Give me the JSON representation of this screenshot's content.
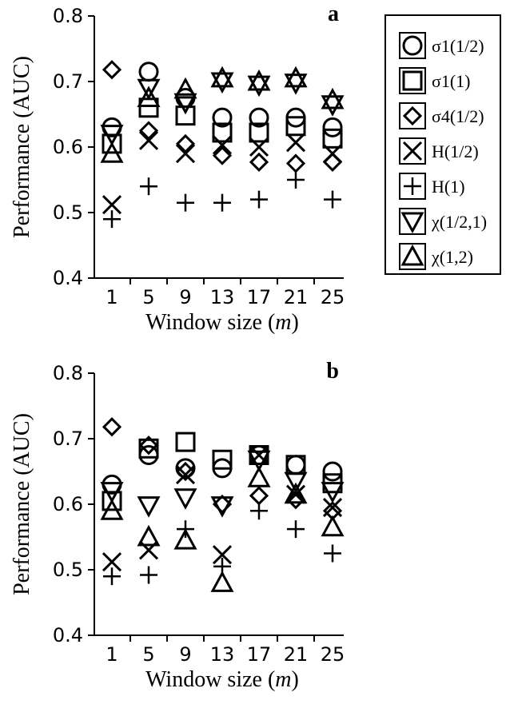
{
  "chart_data": [
    {
      "type": "scatter",
      "panel_label": "a",
      "xlabel": "Window size",
      "xlabel_var": "m",
      "ylabel": "Performance (AUC)",
      "ylim": [
        0.4,
        0.8
      ],
      "yticks": [
        "0.4",
        "0.5",
        "0.6",
        "0.7",
        "0.8"
      ],
      "x": [
        1,
        5,
        9,
        13,
        17,
        21,
        25
      ],
      "xticks": [
        "1",
        "5",
        "9",
        "13",
        "17",
        "21",
        "25"
      ],
      "series": [
        {
          "name": "σ1(1/2)",
          "marker": "circle",
          "values": [
            0.63,
            0.715,
            0.675,
            0.645,
            0.645,
            0.645,
            0.63
          ]
        },
        {
          "name": "σ1(1)",
          "marker": "square",
          "values": [
            0.605,
            0.66,
            0.648,
            0.622,
            0.622,
            0.632,
            0.613
          ]
        },
        {
          "name": "σ4(1/2)",
          "marker": "diamond",
          "values": [
            0.718,
            0.625,
            0.605,
            0.587,
            0.577,
            0.575,
            0.577
          ]
        },
        {
          "name": "H(1/2)",
          "marker": "x",
          "values": [
            0.512,
            0.61,
            0.59,
            0.603,
            0.6,
            0.607,
            0.59
          ]
        },
        {
          "name": "H(1)",
          "marker": "plus",
          "values": [
            0.49,
            0.54,
            0.515,
            0.515,
            0.52,
            0.55,
            0.52
          ]
        },
        {
          "name": "χ(1/2,1)",
          "marker": "triangle-down",
          "values": [
            0.62,
            0.69,
            0.668,
            0.7,
            0.695,
            0.698,
            0.665
          ]
        },
        {
          "name": "χ(1,2)",
          "marker": "triangle-up",
          "values": [
            0.59,
            0.675,
            0.688,
            0.705,
            0.7,
            0.705,
            0.672
          ]
        }
      ],
      "legend": "outside-right"
    },
    {
      "type": "scatter",
      "panel_label": "b",
      "xlabel": "Window size",
      "xlabel_var": "m",
      "ylabel": "Performance (AUC)",
      "ylim": [
        0.4,
        0.8
      ],
      "yticks": [
        "0.4",
        "0.5",
        "0.6",
        "0.7",
        "0.8"
      ],
      "x": [
        1,
        5,
        9,
        13,
        17,
        21,
        25
      ],
      "xticks": [
        "1",
        "5",
        "9",
        "13",
        "17",
        "21",
        "25"
      ],
      "series": [
        {
          "name": "σ1(1/2)",
          "marker": "circle",
          "values": [
            0.63,
            0.675,
            0.655,
            0.655,
            0.675,
            0.66,
            0.65
          ]
        },
        {
          "name": "σ1(1)",
          "marker": "square",
          "values": [
            0.605,
            0.685,
            0.695,
            0.668,
            0.675,
            0.66,
            0.632
          ]
        },
        {
          "name": "σ4(1/2)",
          "marker": "diamond",
          "values": [
            0.718,
            0.69,
            0.65,
            0.6,
            0.613,
            0.607,
            0.59
          ]
        },
        {
          "name": "H(1/2)",
          "marker": "x",
          "values": [
            0.512,
            0.53,
            0.645,
            0.523,
            0.675,
            0.615,
            0.595
          ]
        },
        {
          "name": "H(1)",
          "marker": "plus",
          "values": [
            0.49,
            0.492,
            0.562,
            0.505,
            0.59,
            0.562,
            0.525
          ]
        },
        {
          "name": "χ(1/2,1)",
          "marker": "triangle-down",
          "values": [
            0.62,
            0.598,
            0.61,
            0.598,
            0.668,
            0.635,
            0.62
          ]
        },
        {
          "name": "χ(1,2)",
          "marker": "triangle-up",
          "values": [
            0.59,
            0.55,
            0.545,
            0.48,
            0.64,
            0.615,
            0.565
          ]
        }
      ]
    }
  ]
}
